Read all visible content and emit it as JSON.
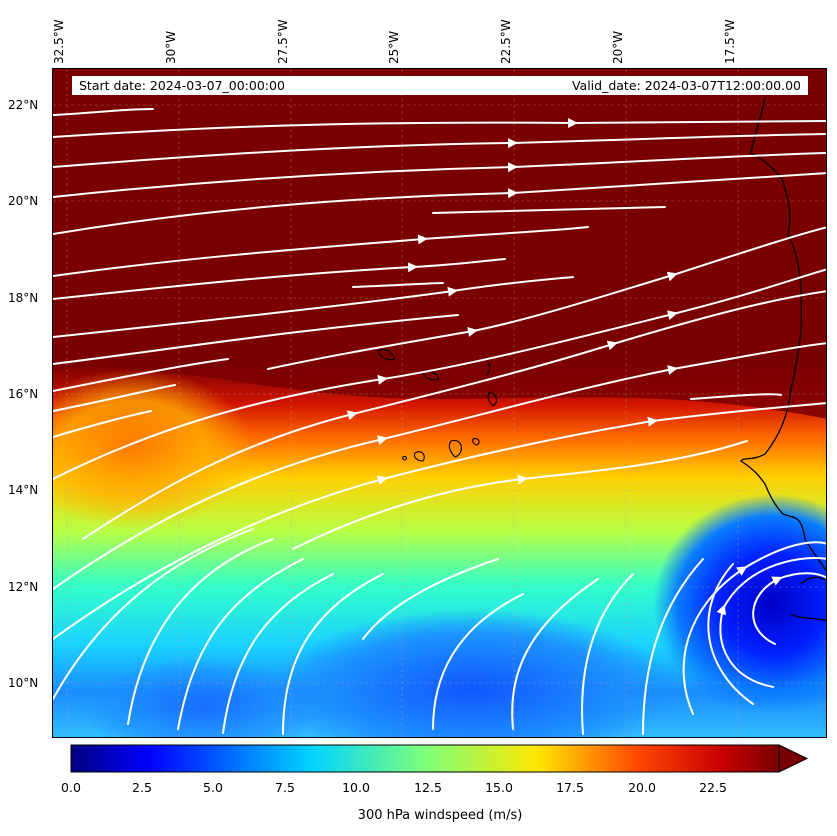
{
  "header": {
    "start_date": "Start date: 2024-03-07_00:00:00",
    "valid_date": "Valid_date: 2024-03-07T12:00:00.00"
  },
  "axes": {
    "longitude_labels": [
      "32.5°W",
      "30°W",
      "27.5°W",
      "25°W",
      "22.5°W",
      "20°W",
      "17.5°W"
    ],
    "latitude_labels": [
      "22°N",
      "20°N",
      "18°N",
      "16°N",
      "14°N",
      "12°N",
      "10°N"
    ]
  },
  "colorbar": {
    "label": "300 hPa windspeed (m/s)",
    "ticks": [
      "0.0",
      "2.5",
      "5.0",
      "7.5",
      "10.0",
      "12.5",
      "15.0",
      "17.5",
      "20.0",
      "22.5"
    ],
    "range": [
      0,
      25
    ],
    "colormap": "jet",
    "extend": "max"
  },
  "map": {
    "field": "300 hPa windspeed",
    "overlay": "streamlines",
    "streamline_color": "#ffffff",
    "coastline_color": "#000000",
    "high_wind_color": "#7a0000",
    "low_wind_color": "#0000c8",
    "features": [
      "cape-verde-islands",
      "west-africa-coastline"
    ]
  }
}
